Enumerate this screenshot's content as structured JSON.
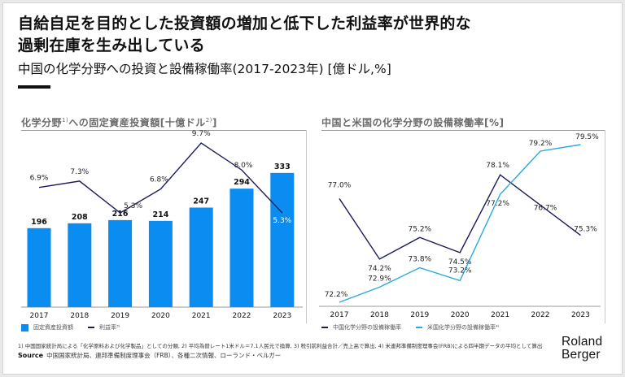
{
  "header": {
    "title_line1": "自給自足を目的とした投資額の増加と低下した利益率が世界的な",
    "title_line2": "過剰在庫を生み出している",
    "subtitle": "中国の化学分野への投資と設備稼働率(2017-2023年) [億ドル,%]"
  },
  "left_panel": {
    "title_main": "化学分野",
    "title_sup1": "1)",
    "title_rest": "への固定資産投資額[十億ドル",
    "title_sup2": "2)",
    "title_close": "]",
    "legend": [
      {
        "label": "固定資産投資額",
        "kind": "box",
        "color": "#0a8cf0"
      },
      {
        "label": "利益率³⁾",
        "kind": "line",
        "color": "#1b1a5c"
      }
    ]
  },
  "right_panel": {
    "title": "中国と米国の化学分野の設備稼働率[%]",
    "legend": [
      {
        "label": "中国化学分野の設備稼働率",
        "kind": "line",
        "color": "#1b1a5c"
      },
      {
        "label": "米国化学分野の設備稼働率⁴⁾",
        "kind": "line",
        "color": "#29a9e0"
      }
    ]
  },
  "chart_data": [
    {
      "type": "bar",
      "title": "化学分野1)への固定資産投資額[十億ドル2)]",
      "categories": [
        "2017",
        "2018",
        "2019",
        "2020",
        "2021",
        "2022",
        "2023"
      ],
      "series": [
        {
          "name": "固定資産投資額",
          "type": "bar",
          "color": "#0a8cf0",
          "values": [
            196,
            208,
            216,
            214,
            247,
            294,
            333
          ],
          "labels": [
            "196",
            "208",
            "216",
            "214",
            "247",
            "294",
            "333"
          ]
        },
        {
          "name": "利益率3)",
          "type": "line",
          "color": "#1b1a5c",
          "unit": "%",
          "values": [
            6.9,
            7.3,
            5.3,
            6.8,
            9.7,
            8.0,
            5.3
          ],
          "labels": [
            "6.9%",
            "7.3%",
            "5.3%",
            "6.8%",
            "9.7%",
            "8.0%",
            "5.3%"
          ]
        }
      ],
      "xlabel": "",
      "ylabel": "",
      "grid": false,
      "legend": "bottom-left"
    },
    {
      "type": "line",
      "title": "中国と米国の化学分野の設備稼働率[%]",
      "categories": [
        "2017",
        "2018",
        "2019",
        "2020",
        "2021",
        "2022",
        "2023"
      ],
      "series": [
        {
          "name": "中国化学分野の設備稼働率",
          "color": "#1b1a5c",
          "values": [
            77.0,
            74.2,
            75.2,
            74.5,
            78.1,
            76.7,
            75.3
          ],
          "labels": [
            "77.0%",
            "74.2%",
            "75.2%",
            "74.5%",
            "78.1%",
            "76.7%",
            "75.3%"
          ]
        },
        {
          "name": "米国化学分野の設備稼働率4)",
          "color": "#29a9e0",
          "values": [
            72.2,
            72.9,
            73.8,
            73.2,
            77.2,
            79.2,
            79.5
          ],
          "labels": [
            "72.2%",
            "72.9%",
            "73.8%",
            "73.2%",
            "77.2%",
            "79.2%",
            "79.5%"
          ]
        }
      ],
      "xlabel": "",
      "ylabel": "%",
      "ylim": [
        71.5,
        80.5
      ],
      "grid": false,
      "legend": "bottom-left"
    }
  ],
  "footer": {
    "footnote": "1) 中国国家統計局による「化学原料および化学製品」としての分類, 2) 平均為替レート1米ドル＝7.1人民元で換算, 3) 税引前利益合計／売上高で算出, 4) 米連邦準備制度理事会(FRB)による四半期データの平均として算出",
    "source_label": "Source",
    "source_text": "中国国家統計局、連邦準備制度理事会（FRB）、各種二次情報、ローランド・ベルガー"
  },
  "logo": {
    "line1": "Roland",
    "line2": "Berger"
  }
}
